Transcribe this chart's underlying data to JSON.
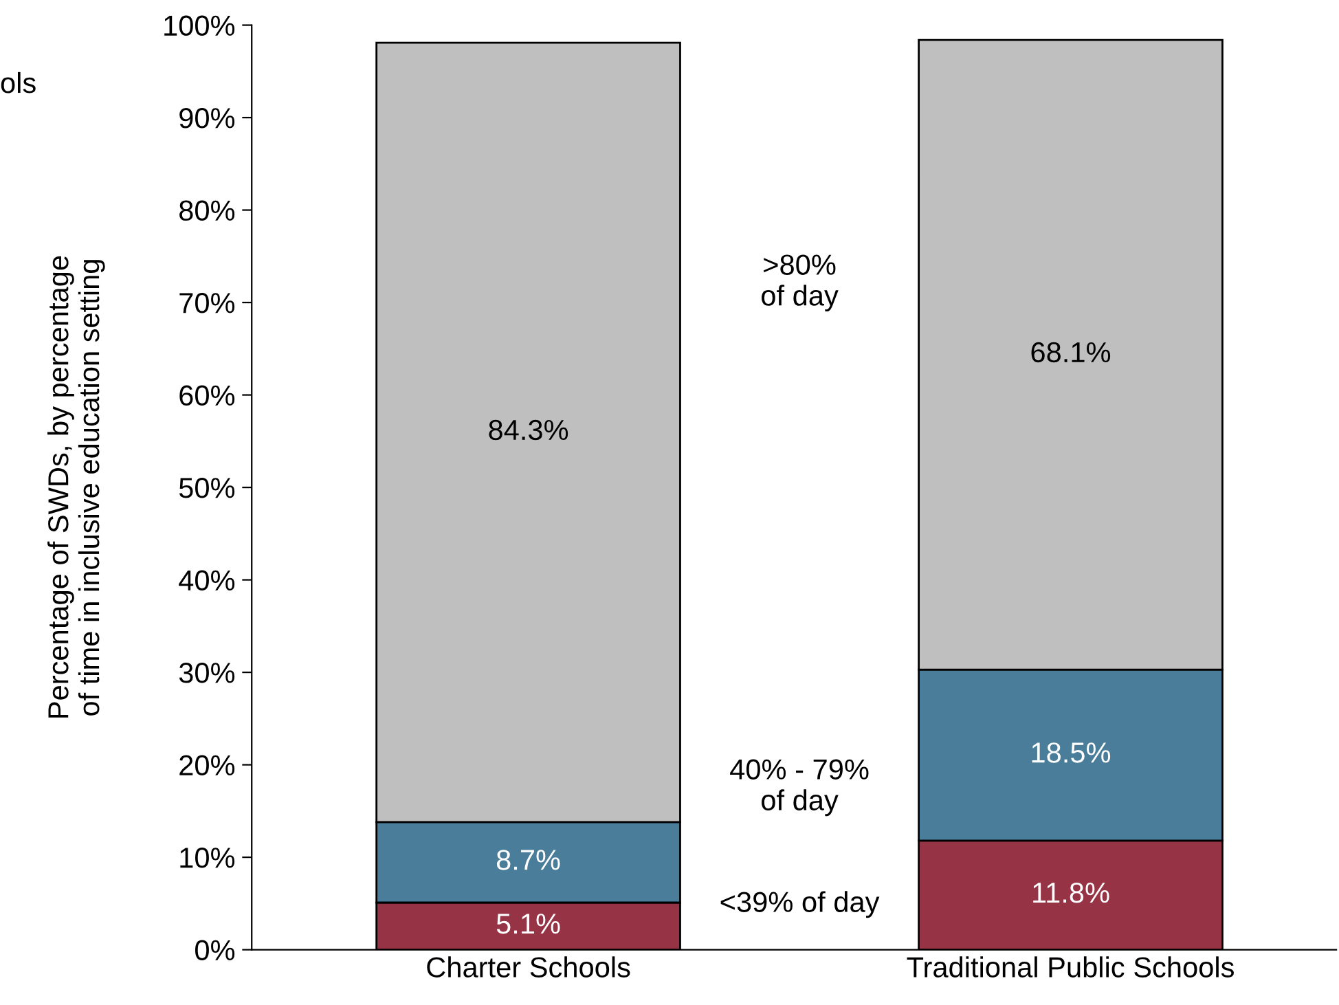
{
  "chart_data": {
    "type": "bar",
    "stacked": true,
    "ylabel": "Percentage of SWDs, by percentage\nof time in inclusive education setting",
    "categories": [
      "Charter Schools",
      "Traditional Public Schools"
    ],
    "series": [
      {
        "name": "<39% of day",
        "color": "#963446",
        "values": [
          5.1,
          11.8
        ],
        "value_labels": [
          "5.1%",
          "11.8%"
        ]
      },
      {
        "name": "40% - 79%\nof day",
        "color": "#4a7d9a",
        "values": [
          8.7,
          18.5
        ],
        "value_labels": [
          "8.7%",
          "18.5%"
        ]
      },
      {
        "name": ">80%\nof day",
        "color": "#bfbfbf",
        "values": [
          84.3,
          68.1
        ],
        "value_labels": [
          "84.3%",
          "68.1%"
        ]
      }
    ],
    "ylim": [
      0,
      100
    ],
    "yticks": [
      {
        "value": 0,
        "label": "0%"
      },
      {
        "value": 10,
        "label": "10%"
      },
      {
        "value": 20,
        "label": "20%"
      },
      {
        "value": 30,
        "label": "30%"
      },
      {
        "value": 40,
        "label": "40%"
      },
      {
        "value": 50,
        "label": "50%"
      },
      {
        "value": 60,
        "label": "60%"
      },
      {
        "value": 70,
        "label": "70%"
      },
      {
        "value": 80,
        "label": "80%"
      },
      {
        "value": 90,
        "label": "90%"
      },
      {
        "value": 100,
        "label": "100%"
      }
    ],
    "grid": false,
    "annotations": [
      "ols"
    ]
  }
}
